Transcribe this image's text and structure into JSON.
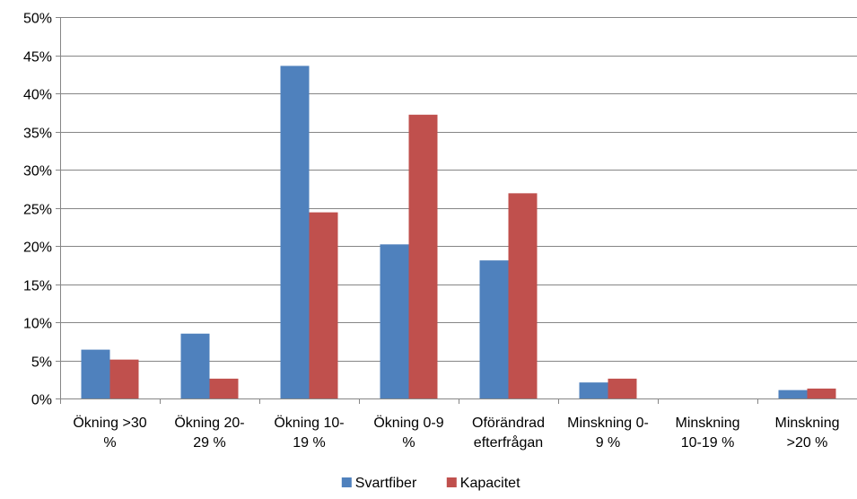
{
  "chart_data": {
    "type": "bar",
    "title": "",
    "xlabel": "",
    "ylabel": "",
    "categories": [
      [
        "Ökning >30",
        "%"
      ],
      [
        "Ökning 20-",
        "29 %"
      ],
      [
        "Ökning 10-",
        "19 %"
      ],
      [
        "Ökning 0-9",
        "%"
      ],
      [
        "Oförändrad",
        "efterfrågan"
      ],
      [
        "Minskning 0-",
        "9 %"
      ],
      [
        "Minskning",
        "10-19 %"
      ],
      [
        "Minskning",
        ">20 %"
      ]
    ],
    "series": [
      {
        "name": "Svartfiber",
        "color": "#4F81BD",
        "values": [
          6.4,
          8.5,
          43.6,
          20.2,
          18.1,
          2.1,
          0,
          1.1
        ]
      },
      {
        "name": "Kapacitet",
        "color": "#C0504D",
        "values": [
          5.1,
          2.6,
          24.4,
          37.2,
          26.9,
          2.6,
          0,
          1.3
        ]
      }
    ],
    "ylim": [
      0,
      50
    ],
    "ytick_step": 5,
    "ytick_suffix": "%",
    "grid": true,
    "legend_position": "bottom"
  }
}
